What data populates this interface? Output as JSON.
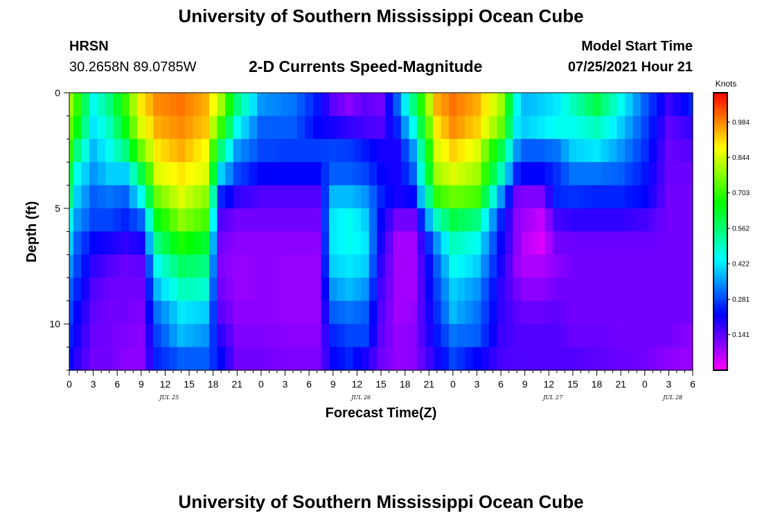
{
  "header": {
    "title": "University of Southern Mississippi Ocean Cube",
    "station": "HRSN",
    "coords": "30.2658N  89.0785W",
    "plot_title": "2-D Currents Speed-Magnitude",
    "model_label": "Model Start Time",
    "model_time": "07/25/2021 Hour 21"
  },
  "footer": {
    "title": "University of Southern Mississippi Ocean Cube"
  },
  "chart_data": {
    "type": "heatmap",
    "title": "2-D Currents Speed-Magnitude",
    "xlabel": "Forecast Time(Z)",
    "ylabel": "Depth (ft)",
    "colorbar_label": "Knots",
    "colorbar_ticks": [
      "0.984",
      "0.844",
      "0.703",
      "0.562",
      "0.422",
      "0.281",
      "0.141"
    ],
    "color_range": [
      0.0,
      1.1
    ],
    "x_tick_labels": [
      "0",
      "3",
      "6",
      "9",
      "12",
      "15",
      "18",
      "21",
      "0",
      "3",
      "6",
      "9",
      "12",
      "15",
      "18",
      "21",
      "0",
      "3",
      "6",
      "9",
      "12",
      "15",
      "18",
      "21",
      "0",
      "3",
      "6"
    ],
    "day_labels": [
      {
        "label": "JUL 25",
        "x_hour": 12.5
      },
      {
        "label": "JUL 26",
        "x_hour": 36.5
      },
      {
        "label": "JUL 27",
        "x_hour": 60.5
      },
      {
        "label": "JUL 28",
        "x_hour": 75.5
      }
    ],
    "y_tick_labels": [
      "0",
      "5",
      "10"
    ],
    "ylim": [
      12,
      0
    ],
    "hours": [
      0,
      1,
      2,
      3,
      4,
      5,
      6,
      7,
      8,
      9,
      10,
      11,
      12,
      13,
      14,
      15,
      16,
      17,
      18,
      19,
      20,
      21,
      22,
      23,
      24,
      25,
      26,
      27,
      28,
      29,
      30,
      31,
      32,
      33,
      34,
      35,
      36,
      37,
      38,
      39,
      40,
      41,
      42,
      43,
      44,
      45,
      46,
      47,
      48,
      49,
      50,
      51,
      52,
      53,
      54,
      55,
      56,
      57,
      58,
      59,
      60,
      61,
      62,
      63,
      64,
      65,
      66,
      67,
      68,
      69,
      70,
      71,
      72,
      73,
      74,
      75,
      76,
      77,
      78
    ],
    "depths_ft": [
      0.5,
      1.5,
      2.5,
      3.5,
      4.5,
      5.5,
      6.5,
      7.5,
      8.5,
      9.5,
      10.5,
      11.5
    ],
    "speed_keyframes": {
      "hours": [
        0,
        1,
        3,
        5,
        7,
        9,
        11,
        14,
        17,
        19,
        21,
        24,
        28,
        31,
        33,
        35,
        37,
        39,
        41,
        43,
        46,
        48,
        51,
        54,
        56,
        57,
        59,
        61,
        63,
        66,
        69,
        72,
        75,
        78
      ],
      "profiles": [
        [
          0.8,
          0.75,
          0.7,
          0.6,
          0.55,
          0.45,
          0.4,
          0.35,
          0.3,
          0.28,
          0.25,
          0.22
        ],
        [
          0.7,
          0.65,
          0.55,
          0.45,
          0.4,
          0.35,
          0.3,
          0.28,
          0.25,
          0.22,
          0.2,
          0.18
        ],
        [
          0.45,
          0.42,
          0.38,
          0.35,
          0.3,
          0.28,
          0.22,
          0.18,
          0.15,
          0.14,
          0.13,
          0.12
        ],
        [
          0.55,
          0.5,
          0.45,
          0.4,
          0.32,
          0.28,
          0.2,
          0.15,
          0.13,
          0.12,
          0.12,
          0.12
        ],
        [
          0.7,
          0.65,
          0.55,
          0.4,
          0.3,
          0.25,
          0.18,
          0.13,
          0.12,
          0.12,
          0.11,
          0.1
        ],
        [
          0.9,
          0.85,
          0.75,
          0.6,
          0.45,
          0.3,
          0.2,
          0.14,
          0.12,
          0.11,
          0.1,
          0.1
        ],
        [
          0.98,
          0.95,
          0.9,
          0.85,
          0.75,
          0.65,
          0.55,
          0.45,
          0.38,
          0.32,
          0.28,
          0.25
        ],
        [
          1.0,
          0.98,
          0.95,
          0.9,
          0.85,
          0.78,
          0.68,
          0.58,
          0.5,
          0.42,
          0.38,
          0.3
        ],
        [
          0.95,
          0.93,
          0.88,
          0.85,
          0.78,
          0.72,
          0.62,
          0.55,
          0.48,
          0.4,
          0.35,
          0.3
        ],
        [
          0.8,
          0.7,
          0.55,
          0.4,
          0.25,
          0.15,
          0.12,
          0.11,
          0.12,
          0.14,
          0.18,
          0.22
        ],
        [
          0.55,
          0.45,
          0.35,
          0.28,
          0.18,
          0.12,
          0.1,
          0.09,
          0.09,
          0.1,
          0.11,
          0.12
        ],
        [
          0.35,
          0.3,
          0.28,
          0.22,
          0.15,
          0.12,
          0.1,
          0.1,
          0.1,
          0.1,
          0.11,
          0.12
        ],
        [
          0.32,
          0.3,
          0.27,
          0.22,
          0.15,
          0.12,
          0.1,
          0.09,
          0.09,
          0.09,
          0.1,
          0.11
        ],
        [
          0.24,
          0.22,
          0.27,
          0.22,
          0.15,
          0.12,
          0.1,
          0.09,
          0.09,
          0.09,
          0.1,
          0.11
        ],
        [
          0.14,
          0.2,
          0.28,
          0.3,
          0.38,
          0.42,
          0.42,
          0.4,
          0.35,
          0.3,
          0.25,
          0.22
        ],
        [
          0.1,
          0.18,
          0.27,
          0.3,
          0.38,
          0.45,
          0.45,
          0.42,
          0.38,
          0.32,
          0.28,
          0.25
        ],
        [
          0.14,
          0.16,
          0.24,
          0.28,
          0.35,
          0.4,
          0.42,
          0.4,
          0.35,
          0.3,
          0.28,
          0.2
        ],
        [
          0.12,
          0.15,
          0.2,
          0.22,
          0.25,
          0.22,
          0.2,
          0.18,
          0.16,
          0.15,
          0.14,
          0.13
        ],
        [
          0.3,
          0.25,
          0.2,
          0.2,
          0.2,
          0.12,
          0.08,
          0.08,
          0.08,
          0.08,
          0.09,
          0.09
        ],
        [
          0.55,
          0.45,
          0.35,
          0.3,
          0.22,
          0.12,
          0.08,
          0.08,
          0.08,
          0.09,
          0.1,
          0.1
        ],
        [
          0.95,
          0.9,
          0.85,
          0.8,
          0.7,
          0.5,
          0.35,
          0.3,
          0.28,
          0.26,
          0.24,
          0.2
        ],
        [
          1.0,
          0.98,
          0.92,
          0.85,
          0.75,
          0.6,
          0.5,
          0.45,
          0.4,
          0.38,
          0.32,
          0.28
        ],
        [
          0.95,
          0.92,
          0.85,
          0.8,
          0.72,
          0.55,
          0.45,
          0.4,
          0.35,
          0.32,
          0.3,
          0.22
        ],
        [
          0.8,
          0.75,
          0.6,
          0.5,
          0.35,
          0.25,
          0.22,
          0.2,
          0.18,
          0.18,
          0.17,
          0.16
        ],
        [
          0.45,
          0.42,
          0.35,
          0.25,
          0.12,
          0.1,
          0.1,
          0.09,
          0.12,
          0.14,
          0.15,
          0.15
        ],
        [
          0.38,
          0.4,
          0.3,
          0.22,
          0.11,
          0.08,
          0.06,
          0.07,
          0.1,
          0.13,
          0.15,
          0.15
        ],
        [
          0.4,
          0.42,
          0.3,
          0.22,
          0.11,
          0.05,
          0.03,
          0.07,
          0.1,
          0.13,
          0.15,
          0.15
        ],
        [
          0.42,
          0.45,
          0.32,
          0.26,
          0.25,
          0.16,
          0.12,
          0.1,
          0.12,
          0.14,
          0.15,
          0.15
        ],
        [
          0.5,
          0.45,
          0.4,
          0.32,
          0.26,
          0.18,
          0.13,
          0.12,
          0.12,
          0.12,
          0.13,
          0.15
        ],
        [
          0.6,
          0.5,
          0.42,
          0.32,
          0.25,
          0.18,
          0.13,
          0.12,
          0.12,
          0.12,
          0.13,
          0.14
        ],
        [
          0.45,
          0.4,
          0.35,
          0.3,
          0.25,
          0.18,
          0.13,
          0.12,
          0.12,
          0.12,
          0.12,
          0.13
        ],
        [
          0.3,
          0.28,
          0.26,
          0.24,
          0.22,
          0.16,
          0.13,
          0.12,
          0.12,
          0.12,
          0.12,
          0.12
        ],
        [
          0.17,
          0.14,
          0.13,
          0.13,
          0.12,
          0.12,
          0.12,
          0.12,
          0.12,
          0.12,
          0.12,
          0.1
        ],
        [
          0.25,
          0.18,
          0.15,
          0.13,
          0.12,
          0.12,
          0.12,
          0.12,
          0.12,
          0.12,
          0.1,
          0.09
        ]
      ]
    }
  }
}
